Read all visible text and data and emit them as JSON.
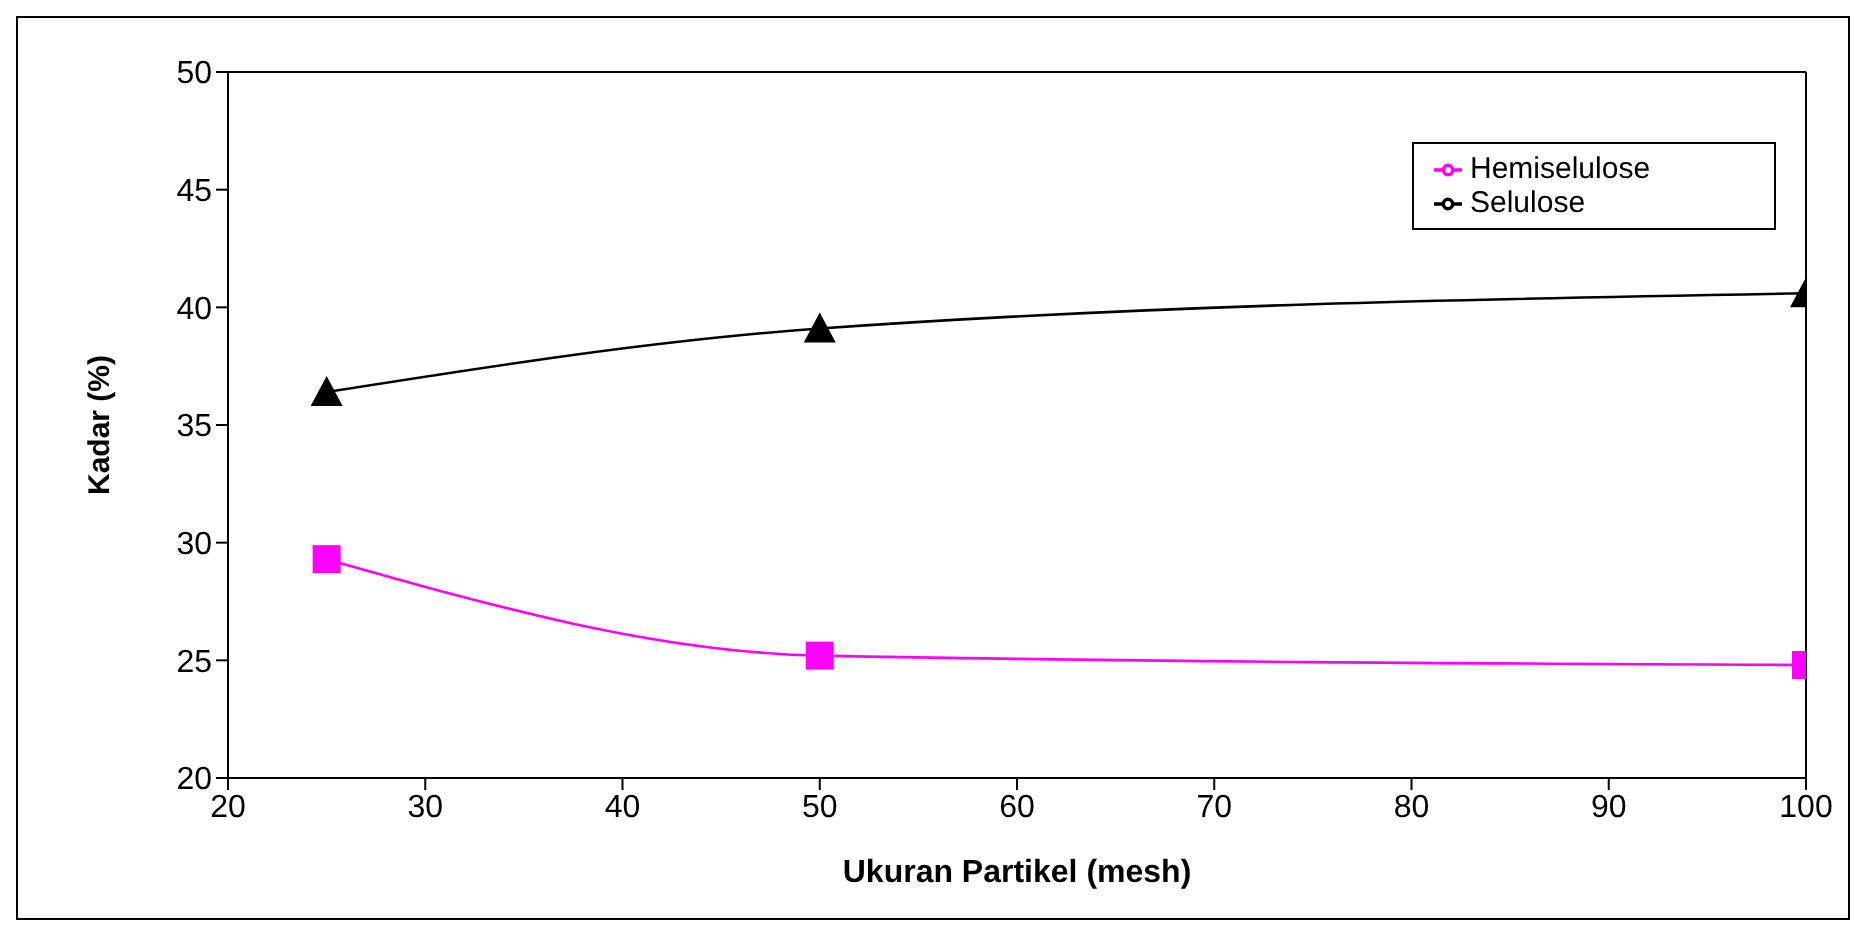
{
  "chart_data": {
    "type": "line",
    "xlabel": "Ukuran Partikel (mesh)",
    "ylabel": "Kadar (%)",
    "x": [
      25,
      50,
      100
    ],
    "series": [
      {
        "name": "Hemiselulose",
        "color": "#ff00ff",
        "values": [
          29.3,
          25.2,
          24.8
        ],
        "marker": "square"
      },
      {
        "name": "Selulose",
        "color": "#000000",
        "values": [
          36.4,
          39.1,
          40.6
        ],
        "marker": "triangle"
      }
    ],
    "xlim": [
      20,
      100
    ],
    "xticks": [
      20,
      30,
      40,
      50,
      60,
      70,
      80,
      90,
      100
    ],
    "ylim": [
      20,
      50
    ],
    "yticks": [
      20,
      25,
      30,
      35,
      40,
      45,
      50
    ],
    "grid": false,
    "legend": "top right",
    "line_style": "solid"
  }
}
